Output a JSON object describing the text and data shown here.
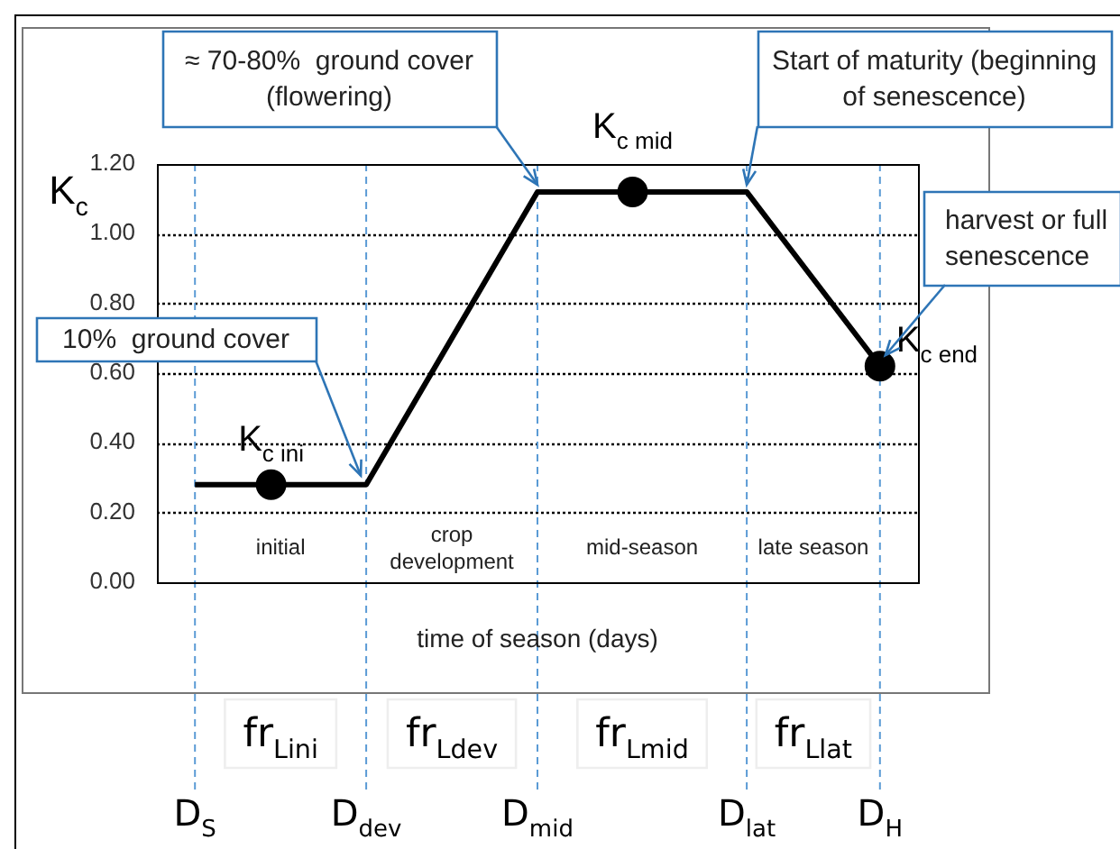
{
  "chart_data": {
    "type": "line",
    "xlabel": "time of season (days)",
    "ylabel": "K$_{c}$",
    "categories": [
      null,
      null,
      "D$_{S}$",
      null,
      null,
      null,
      null,
      null,
      null,
      null,
      null,
      "D$_{dev}$",
      null,
      null,
      null,
      null,
      null,
      null,
      null,
      null,
      "D$_{mid}$",
      null,
      null,
      null,
      null,
      null,
      null,
      null,
      null,
      null,
      null,
      "D$_{lat}$",
      null,
      null,
      null,
      null,
      null,
      null,
      "D$_{H}$",
      null,
      null
    ],
    "ylim": [
      0,
      1.2
    ],
    "yticks": [
      {
        "value": 0,
        "label": "0.00"
      },
      {
        "value": 0.2,
        "label": "0.20"
      },
      {
        "value": 0.4,
        "label": "0.40"
      },
      {
        "value": 0.6,
        "label": "0.60"
      },
      {
        "value": 0.8,
        "label": "0.80"
      },
      {
        "value": 1,
        "label": "1.00"
      },
      {
        "value": 1.2,
        "label": "1.20"
      }
    ],
    "grid": "y",
    "series": [
      {
        "color": "#000000",
        "marker": "none",
        "values": [
          null,
          null,
          0.28,
          null,
          null,
          null,
          null,
          null,
          null,
          null,
          null,
          0.28,
          null,
          null,
          null,
          null,
          null,
          null,
          null,
          null,
          1.12,
          null,
          null,
          null,
          null,
          null,
          null,
          null,
          null,
          null,
          null,
          1.12,
          null,
          null,
          null,
          null,
          null,
          null,
          0.62,
          null,
          null
        ]
      },
      {
        "type": "scatter",
        "color": "#000000",
        "marker": "circle",
        "values": [
          null,
          null,
          null,
          null,
          null,
          null,
          0.28,
          null,
          null,
          null,
          null,
          null,
          null,
          null,
          null,
          null,
          null,
          null,
          null,
          null,
          null,
          null,
          null,
          null,
          null,
          1.12,
          null,
          null,
          null,
          null,
          null,
          null,
          null,
          null,
          null,
          null,
          null,
          null,
          0.62,
          null,
          null
        ],
        "value_labels": [
          null,
          null,
          null,
          null,
          null,
          null,
          "K$_{c ini}$",
          null,
          null,
          null,
          null,
          null,
          null,
          null,
          null,
          null,
          null,
          null,
          null,
          null,
          null,
          null,
          null,
          null,
          null,
          "K$_{c mid}$",
          null,
          null,
          null,
          null,
          null,
          null,
          null,
          null,
          null,
          null,
          null,
          null,
          "K$_{c end}$",
          null,
          null
        ]
      }
    ],
    "ref_lines": [
      {
        "axis": "x",
        "value": "D$_{S}$",
        "color": "#5b9bd5",
        "line_style": "dashed"
      },
      {
        "axis": "x",
        "value": "D$_{dev}$",
        "color": "#5b9bd5",
        "line_style": "dashed"
      },
      {
        "axis": "x",
        "value": "D$_{mid}$",
        "color": "#5b9bd5",
        "line_style": "dashed"
      },
      {
        "axis": "x",
        "value": "D$_{lat}$",
        "color": "#5b9bd5",
        "line_style": "dashed"
      },
      {
        "axis": "x",
        "value": "D$_{H}$",
        "color": "#5b9bd5",
        "line_style": "dashed"
      }
    ],
    "annotations": [
      {
        "text": "≈ 70-80%  ground cover (flowering)",
        "x": "D$_{mid}$",
        "y": 1.12
      },
      {
        "text": "Start of maturity (beginning of senescence)",
        "x": "D$_{lat}$",
        "y": 1.12
      },
      {
        "text": "harvest or full senescence",
        "x": "D$_{H}$",
        "y": 0.62
      },
      {
        "text": "10%  ground cover",
        "x": "D$_{dev}$",
        "y": 0.28
      },
      "initial",
      "crop development",
      "mid-season",
      "late season",
      "fr$_{Lini}$",
      "fr$_{Ldev}$",
      "fr$_{Lmid}$",
      "fr$_{Llat}$"
    ]
  }
}
